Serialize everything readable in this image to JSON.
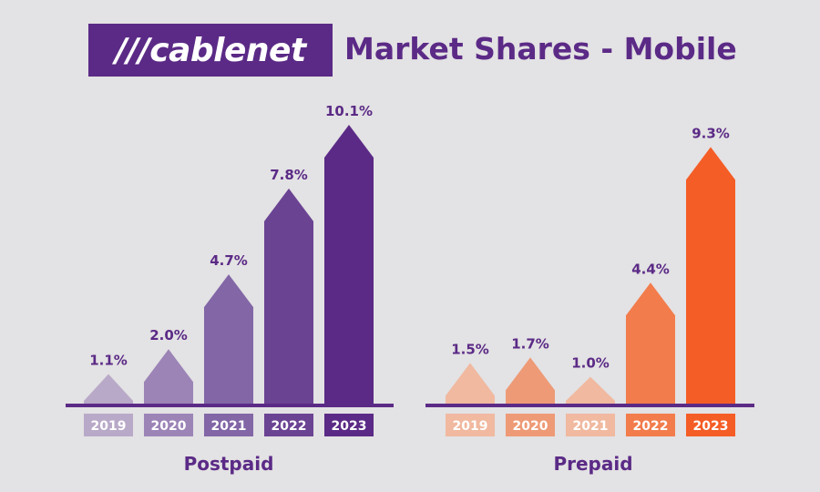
{
  "header": {
    "logo_text": "///cablenet",
    "title": "Market Shares - Mobile"
  },
  "colors": {
    "brand": "#5b2a86",
    "background": "#e3e2e4",
    "postpaid": [
      "#b9a9c8",
      "#9c84b7",
      "#8266a6",
      "#6b4393",
      "#5b2a86"
    ],
    "prepaid": [
      "#f0b9a0",
      "#ee9a76",
      "#f0b9a0",
      "#f27c4c",
      "#f55d26"
    ]
  },
  "chart_data": [
    {
      "type": "bar",
      "title": "Postpaid",
      "categories": [
        "2019",
        "2020",
        "2021",
        "2022",
        "2023"
      ],
      "values": [
        1.1,
        2.0,
        4.7,
        7.8,
        10.1
      ],
      "value_labels": [
        "1.1%",
        "2.0%",
        "4.7%",
        "7.8%",
        "10.1%"
      ],
      "xlabel": "",
      "ylabel": ""
    },
    {
      "type": "bar",
      "title": "Prepaid",
      "categories": [
        "2019",
        "2020",
        "2021",
        "2022",
        "2023"
      ],
      "values": [
        1.5,
        1.7,
        1.0,
        4.4,
        9.3
      ],
      "value_labels": [
        "1.5%",
        "1.7%",
        "1.0%",
        "4.4%",
        "9.3%"
      ],
      "xlabel": "",
      "ylabel": ""
    }
  ]
}
